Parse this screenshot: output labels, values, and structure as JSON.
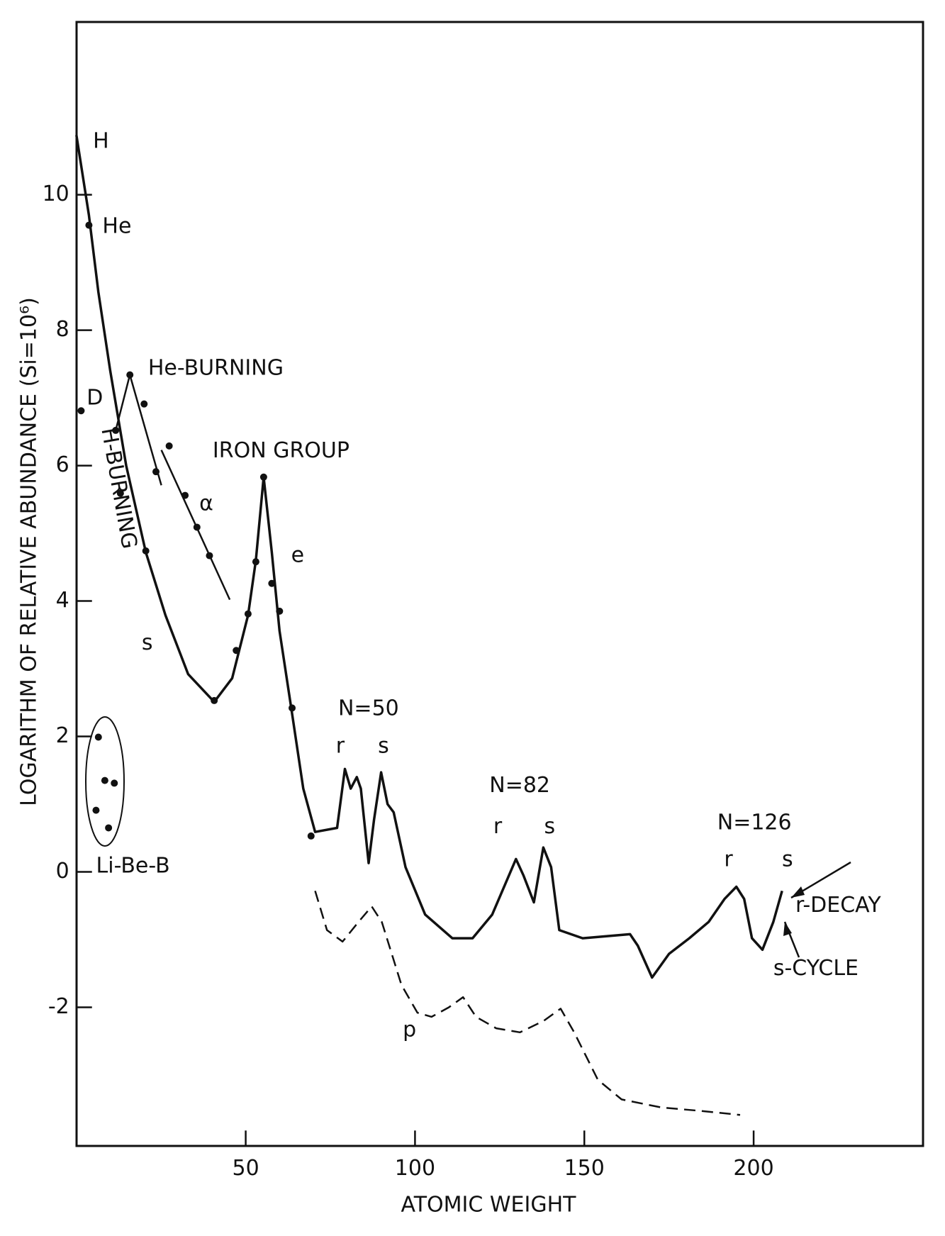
{
  "chart_data": {
    "type": "line",
    "xlabel": "ATOMIC WEIGHT",
    "ylabel": "LOGARITHM OF RELATIVE ABUNDANCE (Si=10⁶)",
    "xlim": [
      0,
      250
    ],
    "ylim": [
      -4.05,
      12.55
    ],
    "xticks": [
      50,
      100,
      150,
      200
    ],
    "yticks": [
      -2,
      0,
      2,
      4,
      6,
      8,
      10
    ],
    "color": "#111111",
    "series": [
      {
        "style": "solid",
        "x": [
          0,
          3.7,
          6.5,
          10,
          14.7,
          20.5,
          26.3,
          33,
          40.7,
          46,
          50.7,
          53,
          55.3,
          57.7,
          60,
          63.5,
          67,
          70.5,
          77,
          79.3,
          81,
          82.8,
          84,
          86.3,
          87.9,
          90,
          91.9,
          93.7,
          97.2,
          103,
          111,
          117,
          122.8,
          129.8,
          132,
          135.1,
          137.9,
          140.2,
          142.6,
          149.5,
          163.5,
          165.8,
          170,
          175,
          181,
          186.7,
          191.4,
          194.9,
          197.2,
          199.5,
          202.6,
          205.8,
          208.4
        ],
        "values": [
          10.88,
          9.7,
          8.56,
          7.4,
          6.0,
          4.72,
          3.79,
          2.92,
          2.51,
          2.86,
          3.79,
          4.6,
          5.83,
          4.72,
          3.56,
          2.4,
          1.23,
          0.59,
          0.65,
          1.52,
          1.23,
          1.4,
          1.23,
          0.13,
          0.77,
          1.47,
          1.0,
          0.88,
          0.07,
          -0.63,
          -0.98,
          -0.98,
          -0.63,
          0.19,
          -0.05,
          -0.45,
          0.36,
          0.07,
          -0.86,
          -0.98,
          -0.92,
          -1.09,
          -1.56,
          -1.21,
          -0.98,
          -0.74,
          -0.4,
          -0.22,
          -0.4,
          -0.98,
          -1.15,
          -0.74,
          -0.28
        ]
      },
      {
        "style": "dashed",
        "x": [
          70.5,
          74,
          78.6,
          83.3,
          87.2,
          90.2,
          96,
          100.7,
          104.9,
          110,
          114.2,
          118,
          124,
          131,
          138,
          143,
          147,
          154,
          161,
          172.8,
          184.4,
          196
        ],
        "values": [
          -0.28,
          -0.86,
          -1.03,
          -0.74,
          -0.51,
          -0.74,
          -1.67,
          -2.08,
          -2.14,
          -2.0,
          -1.85,
          -2.14,
          -2.31,
          -2.37,
          -2.2,
          -2.02,
          -2.37,
          -3.07,
          -3.36,
          -3.48,
          -3.53,
          -3.59
        ]
      },
      {
        "style": "thin",
        "x": [
          11.6,
          15.8,
          25.1
        ],
        "values": [
          6.52,
          7.34,
          5.71
        ]
      },
      {
        "style": "thin",
        "x": [
          25.1,
          45.3
        ],
        "values": [
          6.23,
          4.02
        ]
      }
    ],
    "points": {
      "x": [
        3.7,
        1.4,
        11.6,
        15.8,
        20,
        23.5,
        13,
        20.5,
        27.4,
        32.1,
        35.6,
        39.3,
        40.7,
        47.2,
        50.7,
        53,
        55.3,
        57.7,
        60,
        63.7,
        69.3,
        6.5,
        8.4,
        11.2,
        5.8,
        9.5
      ],
      "values": [
        9.55,
        6.81,
        6.52,
        7.34,
        6.91,
        5.91,
        5.59,
        4.74,
        6.29,
        5.56,
        5.09,
        4.67,
        2.53,
        3.27,
        3.81,
        4.58,
        5.83,
        4.26,
        3.85,
        2.42,
        0.53,
        1.99,
        1.35,
        1.31,
        0.91,
        0.65
      ]
    },
    "annotations": [
      "H",
      "He",
      "D",
      "He-BURNING",
      "H-BURNING",
      "IRON GROUP",
      "α",
      "e",
      "s",
      "N=50",
      "r",
      "s",
      "N=82",
      "r",
      "s",
      "N=126",
      "r",
      "s",
      "r-DECAY",
      "s-CYCLE",
      "p",
      "Li-Be-B"
    ]
  }
}
